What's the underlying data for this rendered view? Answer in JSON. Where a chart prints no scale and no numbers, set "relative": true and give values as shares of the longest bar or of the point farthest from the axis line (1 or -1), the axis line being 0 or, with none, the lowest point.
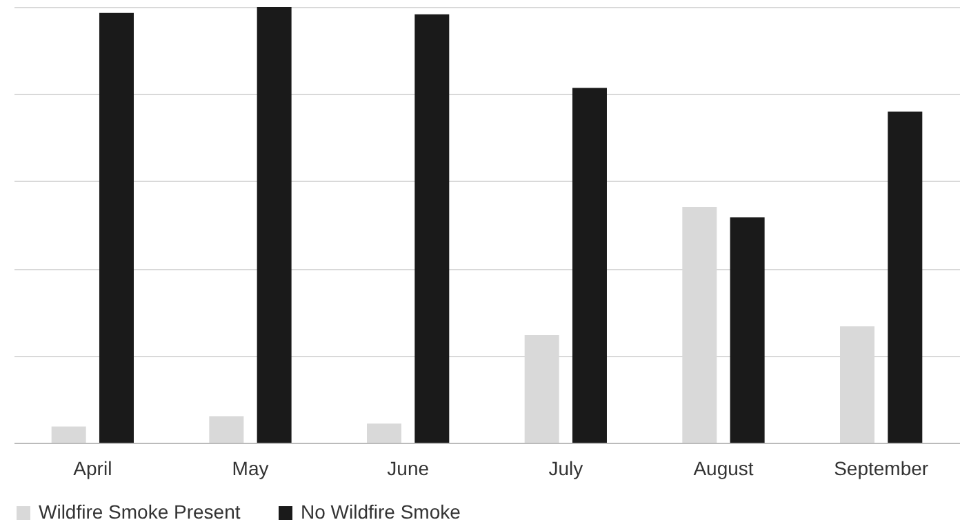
{
  "chart_data": {
    "type": "bar",
    "relative": true,
    "categories": [
      "April",
      "May",
      "June",
      "July",
      "August",
      "September"
    ],
    "series": [
      {
        "name": "Wildfire Smoke Present",
        "color": "#d9d9d9",
        "values": [
          0.037,
          0.061,
          0.044,
          0.247,
          0.541,
          0.267
        ]
      },
      {
        "name": "No Wildfire Smoke",
        "color": "#1a1a1a",
        "values": [
          0.986,
          1,
          0.983,
          0.814,
          0.517,
          0.76
        ]
      }
    ],
    "grid": "y",
    "legend": "bottom"
  }
}
